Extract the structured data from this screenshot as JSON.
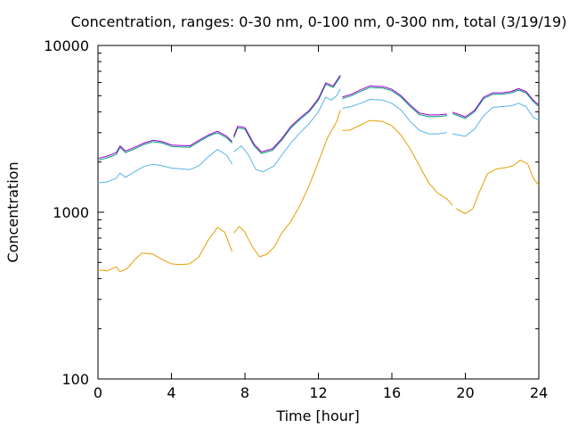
{
  "chart_data": {
    "type": "line",
    "title": "Concentration, ranges: 0-30 nm, 0-100 nm, 0-300 nm, total (3/19/19)",
    "xlabel": "Time [hour]",
    "ylabel": "Concentration",
    "xlim": [
      0,
      24
    ],
    "ylim": [
      100,
      10000
    ],
    "yscale": "log",
    "grid": false,
    "x_ticks": [
      0,
      4,
      8,
      12,
      16,
      20,
      24
    ],
    "x_tick_labels": [
      "0",
      "4",
      "8",
      "12",
      "16",
      "20",
      "24"
    ],
    "y_ticks": [
      100,
      1000,
      10000
    ],
    "y_tick_labels": [
      "100",
      "1000",
      "10000"
    ],
    "series": [
      {
        "color": "#e69f00",
        "segments": [
          [
            [
              0,
              450
            ],
            [
              0.5,
              445
            ],
            [
              1.0,
              470
            ],
            [
              1.2,
              440
            ],
            [
              1.6,
              460
            ],
            [
              2.0,
              520
            ],
            [
              2.4,
              570
            ],
            [
              3.0,
              560
            ],
            [
              3.5,
              520
            ],
            [
              4.0,
              490
            ],
            [
              4.5,
              485
            ],
            [
              5.0,
              490
            ],
            [
              5.5,
              540
            ],
            [
              6.0,
              680
            ],
            [
              6.5,
              810
            ],
            [
              6.9,
              760
            ],
            [
              7.3,
              580
            ]
          ],
          [
            [
              7.4,
              750
            ],
            [
              7.7,
              820
            ],
            [
              8.0,
              760
            ],
            [
              8.4,
              620
            ],
            [
              8.8,
              540
            ],
            [
              9.2,
              560
            ],
            [
              9.6,
              620
            ],
            [
              10.0,
              750
            ],
            [
              10.5,
              880
            ],
            [
              11.0,
              1100
            ],
            [
              11.5,
              1450
            ],
            [
              12.0,
              2000
            ],
            [
              12.5,
              2800
            ],
            [
              13.0,
              3500
            ],
            [
              13.2,
              4100
            ]
          ],
          [
            [
              13.3,
              3100
            ],
            [
              13.7,
              3100
            ],
            [
              14.2,
              3300
            ],
            [
              14.8,
              3550
            ],
            [
              15.5,
              3500
            ],
            [
              16.0,
              3300
            ],
            [
              16.5,
              2900
            ],
            [
              17.0,
              2400
            ],
            [
              17.5,
              1900
            ],
            [
              18.0,
              1500
            ],
            [
              18.5,
              1300
            ],
            [
              19.0,
              1200
            ],
            [
              19.3,
              1100
            ]
          ],
          [
            [
              19.5,
              1050
            ],
            [
              20.0,
              980
            ],
            [
              20.4,
              1050
            ],
            [
              20.8,
              1350
            ],
            [
              21.2,
              1700
            ],
            [
              21.7,
              1820
            ],
            [
              22.2,
              1850
            ],
            [
              22.6,
              1900
            ],
            [
              23.0,
              2050
            ],
            [
              23.4,
              1950
            ],
            [
              23.7,
              1600
            ],
            [
              24,
              1450
            ]
          ]
        ]
      },
      {
        "color": "#56b4e9",
        "segments": [
          [
            [
              0,
              1500
            ],
            [
              0.5,
              1520
            ],
            [
              1.0,
              1600
            ],
            [
              1.2,
              1720
            ],
            [
              1.5,
              1620
            ],
            [
              2.0,
              1750
            ],
            [
              2.5,
              1880
            ],
            [
              3.0,
              1940
            ],
            [
              3.5,
              1900
            ],
            [
              4.0,
              1840
            ],
            [
              5.0,
              1800
            ],
            [
              5.5,
              1900
            ],
            [
              6.0,
              2150
            ],
            [
              6.5,
              2380
            ],
            [
              7.0,
              2200
            ],
            [
              7.3,
              1950
            ]
          ],
          [
            [
              7.4,
              2300
            ],
            [
              7.8,
              2500
            ],
            [
              8.2,
              2200
            ],
            [
              8.6,
              1800
            ],
            [
              9.0,
              1750
            ],
            [
              9.6,
              1900
            ],
            [
              10.0,
              2200
            ],
            [
              10.5,
              2600
            ],
            [
              11.0,
              3000
            ],
            [
              11.5,
              3400
            ],
            [
              12.0,
              4000
            ],
            [
              12.4,
              4900
            ],
            [
              12.7,
              4700
            ],
            [
              13.0,
              5000
            ],
            [
              13.2,
              5500
            ]
          ],
          [
            [
              13.3,
              4200
            ],
            [
              13.8,
              4300
            ],
            [
              14.3,
              4500
            ],
            [
              14.8,
              4750
            ],
            [
              15.5,
              4700
            ],
            [
              16.0,
              4500
            ],
            [
              16.5,
              4100
            ],
            [
              17.0,
              3500
            ],
            [
              17.5,
              3100
            ],
            [
              18.0,
              2950
            ],
            [
              18.5,
              2950
            ],
            [
              19.0,
              3000
            ]
          ],
          [
            [
              19.3,
              2950
            ],
            [
              20.0,
              2850
            ],
            [
              20.5,
              3150
            ],
            [
              21.0,
              3800
            ],
            [
              21.5,
              4250
            ],
            [
              22.0,
              4300
            ],
            [
              22.5,
              4350
            ],
            [
              22.9,
              4500
            ],
            [
              23.3,
              4300
            ],
            [
              23.7,
              3700
            ],
            [
              24,
              3550
            ]
          ]
        ]
      },
      {
        "color": "#009e73",
        "segments": [
          [
            [
              0,
              2050
            ],
            [
              0.5,
              2120
            ],
            [
              1.0,
              2220
            ],
            [
              1.2,
              2450
            ],
            [
              1.5,
              2280
            ],
            [
              2.0,
              2400
            ],
            [
              2.5,
              2550
            ],
            [
              3.0,
              2650
            ],
            [
              3.5,
              2600
            ],
            [
              4.0,
              2480
            ],
            [
              5.0,
              2450
            ],
            [
              5.5,
              2650
            ],
            [
              6.0,
              2850
            ],
            [
              6.5,
              3000
            ],
            [
              7.0,
              2800
            ],
            [
              7.3,
              2600
            ]
          ],
          [
            [
              7.4,
              2800
            ],
            [
              7.6,
              3200
            ],
            [
              8.0,
              3150
            ],
            [
              8.5,
              2500
            ],
            [
              8.9,
              2250
            ],
            [
              9.5,
              2350
            ],
            [
              10.0,
              2700
            ],
            [
              10.5,
              3200
            ],
            [
              11.0,
              3600
            ],
            [
              11.5,
              4000
            ],
            [
              12.0,
              4700
            ],
            [
              12.4,
              5850
            ],
            [
              12.8,
              5600
            ],
            [
              13.2,
              6500
            ]
          ],
          [
            [
              13.3,
              4800
            ],
            [
              13.8,
              5000
            ],
            [
              14.3,
              5300
            ],
            [
              14.8,
              5600
            ],
            [
              15.5,
              5550
            ],
            [
              16.0,
              5350
            ],
            [
              16.5,
              4900
            ],
            [
              17.0,
              4300
            ],
            [
              17.5,
              3850
            ],
            [
              18.0,
              3750
            ],
            [
              18.5,
              3750
            ],
            [
              19.0,
              3800
            ]
          ],
          [
            [
              19.3,
              3900
            ],
            [
              20.0,
              3650
            ],
            [
              20.5,
              4000
            ],
            [
              21.0,
              4800
            ],
            [
              21.5,
              5100
            ],
            [
              22.0,
              5100
            ],
            [
              22.5,
              5200
            ],
            [
              22.9,
              5400
            ],
            [
              23.3,
              5200
            ],
            [
              23.7,
              4600
            ],
            [
              24,
              4300
            ]
          ]
        ]
      },
      {
        "color": "#9400d3",
        "segments": [
          [
            [
              0,
              2100
            ],
            [
              0.5,
              2170
            ],
            [
              1.0,
              2280
            ],
            [
              1.2,
              2500
            ],
            [
              1.5,
              2330
            ],
            [
              2.0,
              2450
            ],
            [
              2.5,
              2600
            ],
            [
              3.0,
              2700
            ],
            [
              3.5,
              2650
            ],
            [
              4.0,
              2530
            ],
            [
              5.0,
              2500
            ],
            [
              5.5,
              2700
            ],
            [
              6.0,
              2900
            ],
            [
              6.5,
              3060
            ],
            [
              7.0,
              2860
            ],
            [
              7.3,
              2650
            ]
          ],
          [
            [
              7.4,
              2860
            ],
            [
              7.6,
              3270
            ],
            [
              8.0,
              3220
            ],
            [
              8.5,
              2560
            ],
            [
              8.9,
              2300
            ],
            [
              9.5,
              2400
            ],
            [
              10.0,
              2760
            ],
            [
              10.5,
              3270
            ],
            [
              11.0,
              3680
            ],
            [
              11.5,
              4080
            ],
            [
              12.0,
              4800
            ],
            [
              12.4,
              5970
            ],
            [
              12.8,
              5720
            ],
            [
              13.2,
              6640
            ]
          ],
          [
            [
              13.3,
              4900
            ],
            [
              13.8,
              5100
            ],
            [
              14.3,
              5420
            ],
            [
              14.8,
              5720
            ],
            [
              15.5,
              5670
            ],
            [
              16.0,
              5460
            ],
            [
              16.5,
              5000
            ],
            [
              17.0,
              4400
            ],
            [
              17.5,
              3930
            ],
            [
              18.0,
              3830
            ],
            [
              18.5,
              3830
            ],
            [
              19.0,
              3880
            ]
          ],
          [
            [
              19.3,
              3980
            ],
            [
              20.0,
              3730
            ],
            [
              20.5,
              4080
            ],
            [
              21.0,
              4900
            ],
            [
              21.5,
              5200
            ],
            [
              22.0,
              5200
            ],
            [
              22.5,
              5300
            ],
            [
              22.9,
              5510
            ],
            [
              23.3,
              5300
            ],
            [
              23.7,
              4700
            ],
            [
              24,
              4400
            ]
          ]
        ]
      }
    ]
  }
}
